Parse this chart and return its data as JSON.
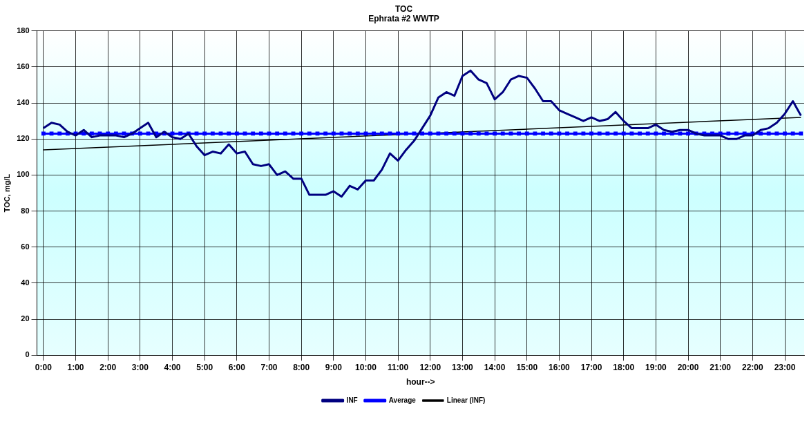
{
  "chart_data": {
    "type": "line",
    "title": "TOC",
    "subtitle": "Ephrata #2 WWTP",
    "xlabel": "hour-->",
    "ylabel": "TOC, mg/L",
    "x": [
      0,
      0.25,
      0.5,
      0.75,
      1,
      1.25,
      1.5,
      1.75,
      2,
      2.25,
      2.5,
      2.75,
      3,
      3.25,
      3.5,
      3.75,
      4,
      4.25,
      4.5,
      4.75,
      5,
      5.25,
      5.5,
      5.75,
      6,
      6.25,
      6.5,
      6.75,
      7,
      7.25,
      7.5,
      7.75,
      8,
      8.25,
      8.5,
      8.75,
      9,
      9.25,
      9.5,
      9.75,
      10,
      10.25,
      10.5,
      10.75,
      11,
      11.25,
      11.5,
      11.75,
      12,
      12.25,
      12.5,
      12.75,
      13,
      13.25,
      13.5,
      13.75,
      14,
      14.25,
      14.5,
      14.75,
      15,
      15.25,
      15.5,
      15.75,
      16,
      16.25,
      16.5,
      16.75,
      17,
      17.25,
      17.5,
      17.75,
      18,
      18.25,
      18.5,
      18.75,
      19,
      19.25,
      19.5,
      19.75,
      20,
      20.25,
      20.5,
      20.75,
      21,
      21.25,
      21.5,
      21.75,
      22,
      22.25,
      22.5,
      22.75,
      23,
      23.25,
      23.5
    ],
    "series": [
      {
        "name": "INF",
        "color": "#000080",
        "marker": "none",
        "values": [
          126,
          129,
          128,
          124,
          122,
          125,
          121,
          122,
          122,
          122,
          121,
          123,
          126,
          129,
          121,
          124,
          121,
          120,
          123,
          116,
          111,
          113,
          112,
          117,
          112,
          113,
          106,
          105,
          106,
          100,
          102,
          98,
          98,
          89,
          89,
          89,
          91,
          88,
          94,
          92,
          97,
          97,
          103,
          112,
          108,
          114,
          119,
          126,
          133,
          143,
          146,
          144,
          155,
          158,
          153,
          151,
          142,
          146,
          153,
          155,
          154,
          148,
          141,
          141,
          136,
          134,
          132,
          130,
          132,
          130,
          131,
          135,
          130,
          126,
          126,
          126,
          128,
          125,
          124,
          125,
          125,
          123,
          122,
          122,
          122,
          120,
          120,
          122,
          122,
          125,
          126,
          129,
          134,
          141,
          133
        ]
      },
      {
        "name": "Average",
        "color": "#0000ff",
        "marker": "square",
        "values": [
          123,
          123,
          123,
          123,
          123,
          123,
          123,
          123,
          123,
          123,
          123,
          123,
          123,
          123,
          123,
          123,
          123,
          123,
          123,
          123,
          123,
          123,
          123,
          123,
          123,
          123,
          123,
          123,
          123,
          123,
          123,
          123,
          123,
          123,
          123,
          123,
          123,
          123,
          123,
          123,
          123,
          123,
          123,
          123,
          123,
          123,
          123,
          123,
          123,
          123,
          123,
          123,
          123,
          123,
          123,
          123,
          123,
          123,
          123,
          123,
          123,
          123,
          123,
          123,
          123,
          123,
          123,
          123,
          123,
          123,
          123,
          123,
          123,
          123,
          123,
          123,
          123,
          123,
          123,
          123,
          123,
          123,
          123,
          123,
          123,
          123,
          123,
          123,
          123,
          123,
          123,
          123,
          123,
          123,
          123
        ]
      },
      {
        "name": "Linear (INF)",
        "color": "#000000",
        "marker": "none",
        "x": [
          0,
          23.5
        ],
        "values": [
          114,
          132
        ]
      }
    ],
    "xlim": [
      -0.2,
      23.6
    ],
    "xticks": [
      {
        "value": 0,
        "label": "0:00"
      },
      {
        "value": 1,
        "label": "1:00"
      },
      {
        "value": 2,
        "label": "2:00"
      },
      {
        "value": 3,
        "label": "3:00"
      },
      {
        "value": 4,
        "label": "4:00"
      },
      {
        "value": 5,
        "label": "5:00"
      },
      {
        "value": 6,
        "label": "6:00"
      },
      {
        "value": 7,
        "label": "7:00"
      },
      {
        "value": 8,
        "label": "8:00"
      },
      {
        "value": 9,
        "label": "9:00"
      },
      {
        "value": 10,
        "label": "10:00"
      },
      {
        "value": 11,
        "label": "11:00"
      },
      {
        "value": 12,
        "label": "12:00"
      },
      {
        "value": 13,
        "label": "13:00"
      },
      {
        "value": 14,
        "label": "14:00"
      },
      {
        "value": 15,
        "label": "15:00"
      },
      {
        "value": 16,
        "label": "16:00"
      },
      {
        "value": 17,
        "label": "17:00"
      },
      {
        "value": 18,
        "label": "18:00"
      },
      {
        "value": 19,
        "label": "19:00"
      },
      {
        "value": 20,
        "label": "20:00"
      },
      {
        "value": 21,
        "label": "21:00"
      },
      {
        "value": 22,
        "label": "22:00"
      },
      {
        "value": 23,
        "label": "23:00"
      }
    ],
    "ylim": [
      0,
      180
    ],
    "yticks": [
      0,
      20,
      40,
      60,
      80,
      100,
      120,
      140,
      160,
      180
    ],
    "grid": true,
    "legend": "bottom",
    "line_style": "solid"
  }
}
